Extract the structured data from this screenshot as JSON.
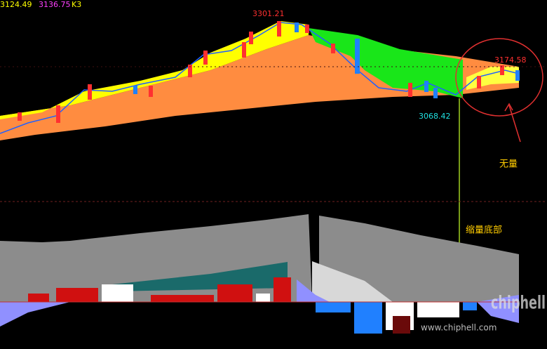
{
  "header": {
    "ma1": "3124.49",
    "ma2": "3136.75",
    "indicator": "K3"
  },
  "annotations": {
    "high": "3301.21",
    "recent_high": "3174.58",
    "low": "3068.42",
    "no_volume": "无量",
    "shrinking_bottom": "缩量底部"
  },
  "watermark": {
    "url": "www.chiphell.com",
    "logo": "chiphell"
  }
}
